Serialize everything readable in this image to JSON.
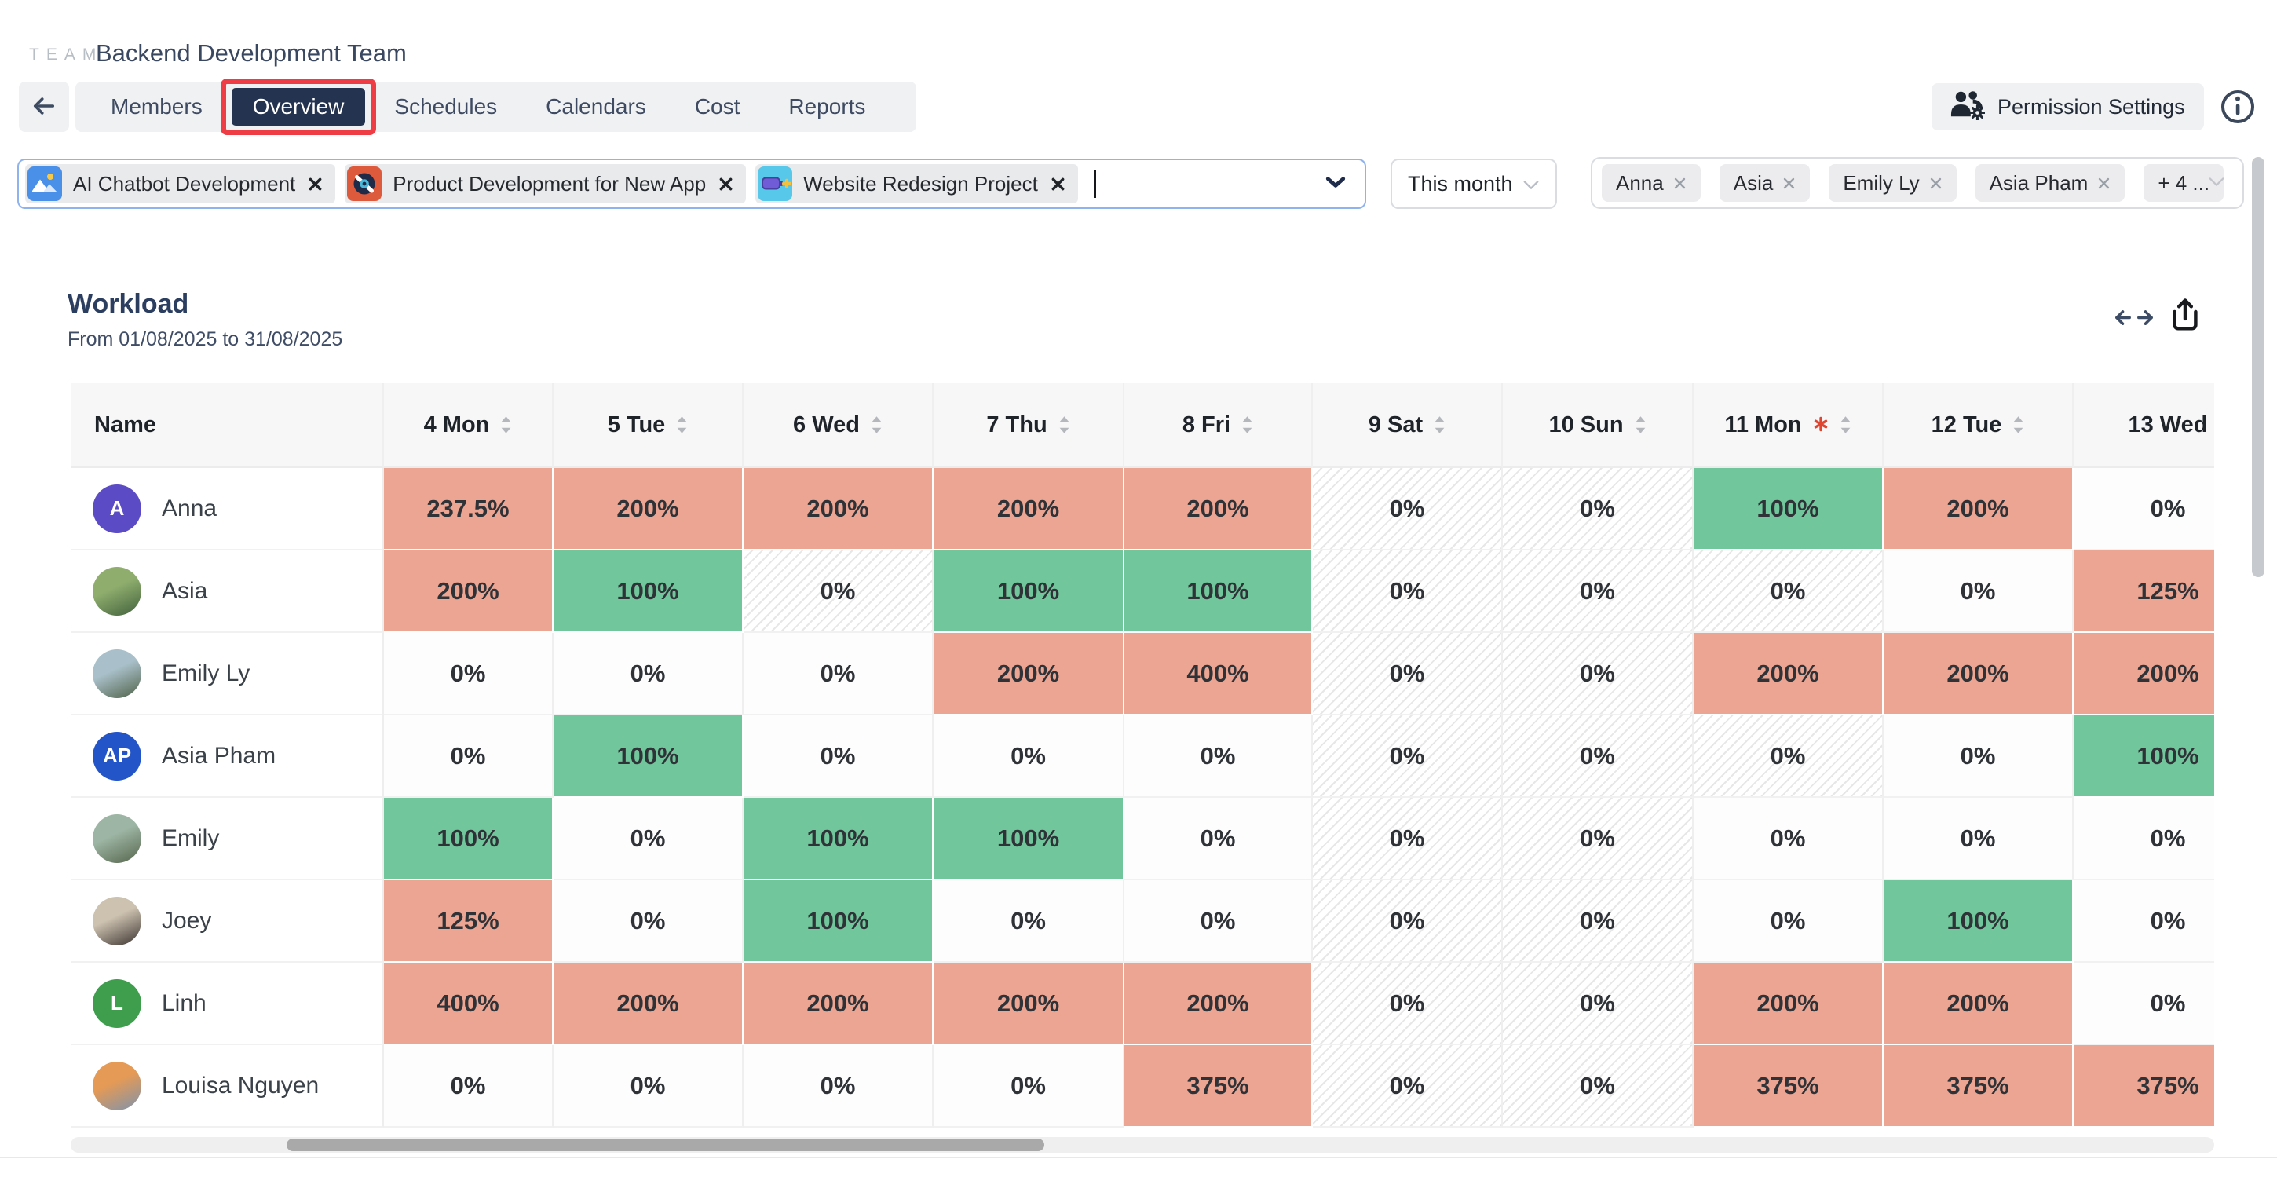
{
  "header": {
    "brand": "TEAM",
    "team_name": "Backend Development Team",
    "permission_button": "Permission Settings"
  },
  "annotation": {
    "highlight_color": "#EE3D45"
  },
  "nav": {
    "tabs": [
      {
        "label": "Members",
        "active": false
      },
      {
        "label": "Overview",
        "active": true
      },
      {
        "label": "Schedules",
        "active": false
      },
      {
        "label": "Calendars",
        "active": false
      },
      {
        "label": "Cost",
        "active": false
      },
      {
        "label": "Reports",
        "active": false
      }
    ]
  },
  "filters": {
    "projects": [
      {
        "name": "AI Chatbot Development",
        "icon": "image-icon",
        "icon_bg": "#4A8FE8"
      },
      {
        "name": "Product Development for New App",
        "icon": "record-icon",
        "icon_bg": "#DE5A3D"
      },
      {
        "name": "Website Redesign Project",
        "icon": "battery-icon",
        "icon_bg": "#58C8EA"
      }
    ],
    "period": "This month",
    "members": [
      "Anna",
      "Asia",
      "Emily Ly",
      "Asia Pham"
    ],
    "members_overflow": "+ 4 ..."
  },
  "workload": {
    "title": "Workload",
    "subtitle": "From 01/08/2025 to 31/08/2025"
  },
  "table": {
    "name_header": "Name",
    "status_colors": {
      "over": "#EBA592",
      "full": "#71C79B"
    },
    "columns": [
      {
        "label": "4 Mon",
        "sort": true
      },
      {
        "label": "5 Tue",
        "sort": true
      },
      {
        "label": "6 Wed",
        "sort": true
      },
      {
        "label": "7 Thu",
        "sort": true
      },
      {
        "label": "8 Fri",
        "sort": true
      },
      {
        "label": "9 Sat",
        "sort": true
      },
      {
        "label": "10 Sun",
        "sort": true
      },
      {
        "label": "11 Mon",
        "sort": true,
        "holiday": true
      },
      {
        "label": "12 Tue",
        "sort": true
      },
      {
        "label": "13 Wed",
        "sort": false
      }
    ],
    "rows": [
      {
        "name": "Anna",
        "avatar": {
          "type": "initials",
          "text": "A",
          "bg": "#5B4BC4"
        },
        "cells": [
          {
            "v": "237.5%",
            "s": "over"
          },
          {
            "v": "200%",
            "s": "over"
          },
          {
            "v": "200%",
            "s": "over"
          },
          {
            "v": "200%",
            "s": "over"
          },
          {
            "v": "200%",
            "s": "over"
          },
          {
            "v": "0%",
            "s": "off"
          },
          {
            "v": "0%",
            "s": "off"
          },
          {
            "v": "100%",
            "s": "full"
          },
          {
            "v": "200%",
            "s": "over"
          },
          {
            "v": "0%",
            "s": "zero"
          }
        ]
      },
      {
        "name": "Asia",
        "avatar": {
          "type": "photo",
          "colors": [
            "#8FAE6E",
            "#41603C"
          ]
        },
        "cells": [
          {
            "v": "200%",
            "s": "over"
          },
          {
            "v": "100%",
            "s": "full"
          },
          {
            "v": "0%",
            "s": "off"
          },
          {
            "v": "100%",
            "s": "full"
          },
          {
            "v": "100%",
            "s": "full"
          },
          {
            "v": "0%",
            "s": "off"
          },
          {
            "v": "0%",
            "s": "off"
          },
          {
            "v": "0%",
            "s": "off"
          },
          {
            "v": "0%",
            "s": "zero"
          },
          {
            "v": "125%",
            "s": "over"
          }
        ]
      },
      {
        "name": "Emily Ly",
        "avatar": {
          "type": "photo",
          "colors": [
            "#A9C0CA",
            "#4F6147"
          ]
        },
        "cells": [
          {
            "v": "0%",
            "s": "zero"
          },
          {
            "v": "0%",
            "s": "zero"
          },
          {
            "v": "0%",
            "s": "zero"
          },
          {
            "v": "200%",
            "s": "over"
          },
          {
            "v": "400%",
            "s": "over"
          },
          {
            "v": "0%",
            "s": "off"
          },
          {
            "v": "0%",
            "s": "off"
          },
          {
            "v": "200%",
            "s": "over"
          },
          {
            "v": "200%",
            "s": "over"
          },
          {
            "v": "200%",
            "s": "over"
          }
        ]
      },
      {
        "name": "Asia Pham",
        "avatar": {
          "type": "initials",
          "text": "AP",
          "bg": "#2455C8"
        },
        "cells": [
          {
            "v": "0%",
            "s": "zero"
          },
          {
            "v": "100%",
            "s": "full"
          },
          {
            "v": "0%",
            "s": "zero"
          },
          {
            "v": "0%",
            "s": "zero"
          },
          {
            "v": "0%",
            "s": "zero"
          },
          {
            "v": "0%",
            "s": "off"
          },
          {
            "v": "0%",
            "s": "off"
          },
          {
            "v": "0%",
            "s": "off"
          },
          {
            "v": "0%",
            "s": "zero"
          },
          {
            "v": "100%",
            "s": "full"
          }
        ]
      },
      {
        "name": "Emily",
        "avatar": {
          "type": "photo",
          "colors": [
            "#9DB5A4",
            "#55654B"
          ]
        },
        "cells": [
          {
            "v": "100%",
            "s": "full"
          },
          {
            "v": "0%",
            "s": "zero"
          },
          {
            "v": "100%",
            "s": "full"
          },
          {
            "v": "100%",
            "s": "full"
          },
          {
            "v": "0%",
            "s": "zero"
          },
          {
            "v": "0%",
            "s": "off"
          },
          {
            "v": "0%",
            "s": "off"
          },
          {
            "v": "0%",
            "s": "zero"
          },
          {
            "v": "0%",
            "s": "zero"
          },
          {
            "v": "0%",
            "s": "zero"
          }
        ]
      },
      {
        "name": "Joey",
        "avatar": {
          "type": "photo",
          "colors": [
            "#CDC2B0",
            "#3A322F"
          ]
        },
        "cells": [
          {
            "v": "125%",
            "s": "over"
          },
          {
            "v": "0%",
            "s": "zero"
          },
          {
            "v": "100%",
            "s": "full"
          },
          {
            "v": "0%",
            "s": "zero"
          },
          {
            "v": "0%",
            "s": "zero"
          },
          {
            "v": "0%",
            "s": "off"
          },
          {
            "v": "0%",
            "s": "off"
          },
          {
            "v": "0%",
            "s": "zero"
          },
          {
            "v": "100%",
            "s": "full"
          },
          {
            "v": "0%",
            "s": "zero"
          }
        ]
      },
      {
        "name": "Linh",
        "avatar": {
          "type": "initials",
          "text": "L",
          "bg": "#3F9E4E"
        },
        "cells": [
          {
            "v": "400%",
            "s": "over"
          },
          {
            "v": "200%",
            "s": "over"
          },
          {
            "v": "200%",
            "s": "over"
          },
          {
            "v": "200%",
            "s": "over"
          },
          {
            "v": "200%",
            "s": "over"
          },
          {
            "v": "0%",
            "s": "off"
          },
          {
            "v": "0%",
            "s": "off"
          },
          {
            "v": "200%",
            "s": "over"
          },
          {
            "v": "200%",
            "s": "over"
          },
          {
            "v": "0%",
            "s": "zero"
          }
        ]
      },
      {
        "name": "Louisa Nguyen",
        "avatar": {
          "type": "photo",
          "colors": [
            "#E59A55",
            "#7D93AD"
          ]
        },
        "cells": [
          {
            "v": "0%",
            "s": "zero"
          },
          {
            "v": "0%",
            "s": "zero"
          },
          {
            "v": "0%",
            "s": "zero"
          },
          {
            "v": "0%",
            "s": "zero"
          },
          {
            "v": "375%",
            "s": "over"
          },
          {
            "v": "0%",
            "s": "off"
          },
          {
            "v": "0%",
            "s": "off"
          },
          {
            "v": "375%",
            "s": "over"
          },
          {
            "v": "375%",
            "s": "over"
          },
          {
            "v": "375%",
            "s": "over"
          }
        ]
      }
    ]
  }
}
